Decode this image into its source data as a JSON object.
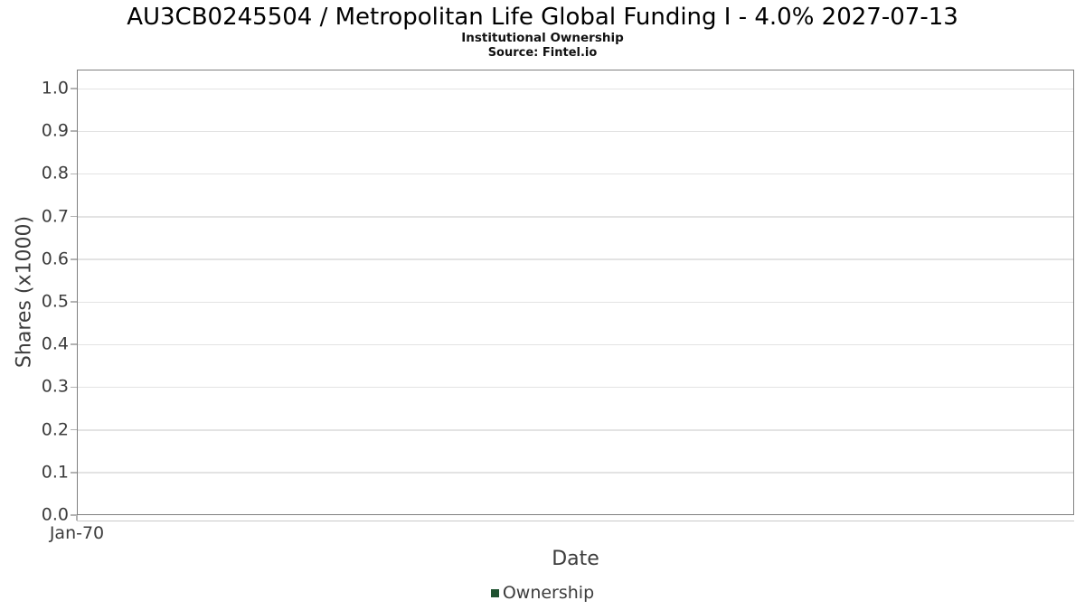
{
  "chart": {
    "title": "AU3CB0245504 / Metropolitan Life Global Funding I - 4.0% 2027-07-13",
    "subtitle": "Institutional Ownership",
    "source": "Source: Fintel.io"
  },
  "chart_data": {
    "type": "line",
    "title": "AU3CB0245504 / Metropolitan Life Global Funding I - 4.0% 2027-07-13",
    "subtitle": "Institutional Ownership",
    "source": "Source: Fintel.io",
    "xlabel": "Date",
    "ylabel": "Shares (x1000)",
    "x_ticks": [
      "Jan-70"
    ],
    "y_ticks": [
      "0.0",
      "0.1",
      "0.2",
      "0.3",
      "0.4",
      "0.5",
      "0.6",
      "0.7",
      "0.8",
      "0.9",
      "1.0"
    ],
    "ylim": [
      0,
      1.045
    ],
    "grid": true,
    "legend_position": "bottom",
    "series": [
      {
        "name": "Ownership",
        "color": "#1f5230",
        "x": [],
        "values": []
      }
    ]
  },
  "colors": {
    "plot_border": "#808080",
    "gridline": "#e3e3e3",
    "tick": "#b3b3b3",
    "axis_text": "#3c3c3c",
    "legend_swatch": "#1f5230"
  }
}
